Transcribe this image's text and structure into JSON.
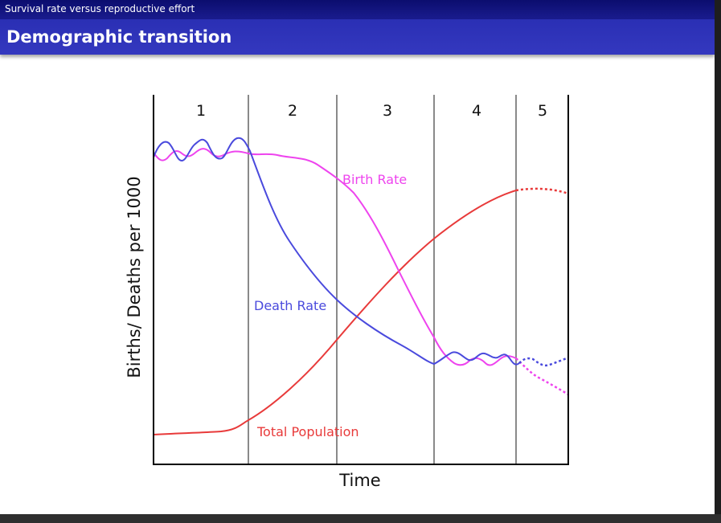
{
  "header": {
    "section": "Survival rate versus reproductive effort",
    "title": "Demographic transition"
  },
  "diagram": {
    "stages": [
      "1",
      "2",
      "3",
      "4",
      "5"
    ],
    "ylabel": "Births/ Deaths per 1000",
    "xlabel": "Time",
    "curves": {
      "birth_rate": {
        "label": "Birth Rate",
        "color": "#ee44ee"
      },
      "death_rate": {
        "label": "Death Rate",
        "color": "#4a4add"
      },
      "total_population": {
        "label": "Total Population",
        "color": "#e83a3a"
      }
    }
  }
}
